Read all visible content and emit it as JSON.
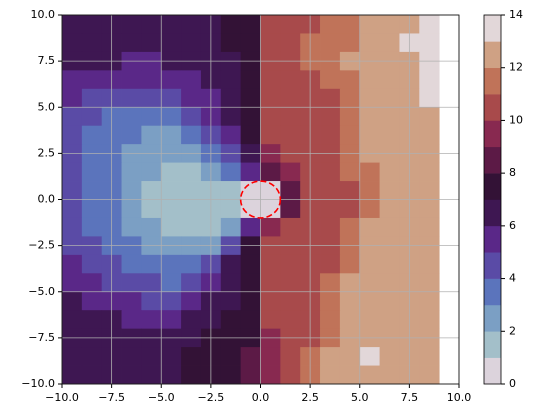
{
  "chart_data": {
    "type": "contourf",
    "x": [
      -9.5,
      -8.5,
      -7.5,
      -6.5,
      -5.5,
      -4.5,
      -3.5,
      -2.5,
      -1.5,
      -0.5,
      0.5,
      1.5,
      2.5,
      3.5,
      4.5,
      5.5,
      6.5,
      7.5,
      8.5,
      9.5
    ],
    "y": [
      9.5,
      8.5,
      7.5,
      6.5,
      5.5,
      4.5,
      3.5,
      2.5,
      1.5,
      0.5,
      -0.5,
      -1.5,
      -2.5,
      -3.5,
      -4.5,
      -5.5,
      -6.5,
      -7.5,
      -8.5,
      -9.5
    ],
    "z": [
      [
        6.5,
        6.5,
        6.5,
        6.5,
        6.5,
        6.5,
        6.5,
        6.5,
        7.5,
        7.5,
        10.5,
        10.5,
        10.5,
        11.5,
        11.5,
        12.5,
        12.5,
        12.5,
        13.5,
        null
      ],
      [
        6.5,
        6.5,
        6.5,
        6.5,
        6.5,
        6.5,
        6.5,
        6.5,
        7.5,
        7.5,
        10.5,
        10.5,
        11.5,
        11.5,
        11.5,
        12.5,
        12.5,
        13.5,
        13.5,
        null
      ],
      [
        6.5,
        6.5,
        6.5,
        5.5,
        5.5,
        6.5,
        6.5,
        6.5,
        6.5,
        7.5,
        10.5,
        10.5,
        11.5,
        11.5,
        12.5,
        12.5,
        12.5,
        12.5,
        13.5,
        null
      ],
      [
        5.5,
        5.5,
        5.5,
        5.5,
        5.5,
        5.5,
        5.5,
        6.5,
        6.5,
        7.5,
        10.5,
        10.5,
        10.5,
        11.5,
        11.5,
        12.5,
        12.5,
        12.5,
        13.5,
        null
      ],
      [
        5.5,
        4.5,
        4.5,
        4.5,
        4.5,
        4.5,
        5.5,
        5.5,
        6.5,
        7.5,
        10.5,
        10.5,
        10.5,
        10.5,
        11.5,
        12.5,
        12.5,
        12.5,
        13.5,
        null
      ],
      [
        4.5,
        4.5,
        3.5,
        3.5,
        3.5,
        3.5,
        4.5,
        5.5,
        6.5,
        7.5,
        10.5,
        10.5,
        10.5,
        10.5,
        11.5,
        12.5,
        12.5,
        12.5,
        12.5,
        null
      ],
      [
        4.5,
        3.5,
        3.5,
        3.5,
        2.5,
        2.5,
        3.5,
        4.5,
        5.5,
        7.5,
        10.5,
        10.5,
        10.5,
        10.5,
        11.5,
        12.5,
        12.5,
        12.5,
        12.5,
        null
      ],
      [
        4.5,
        3.5,
        3.5,
        2.5,
        2.5,
        2.5,
        2.5,
        3.5,
        4.5,
        6.5,
        9.5,
        10.5,
        10.5,
        10.5,
        11.5,
        12.5,
        12.5,
        12.5,
        12.5,
        null
      ],
      [
        4.5,
        3.5,
        3.5,
        2.5,
        2.5,
        1.5,
        1.5,
        2.5,
        3.5,
        5.5,
        8.5,
        9.5,
        10.5,
        10.5,
        11.5,
        11.5,
        12.5,
        12.5,
        12.5,
        null
      ],
      [
        4.5,
        3.5,
        3.5,
        2.5,
        1.5,
        1.5,
        1.5,
        1.5,
        1.5,
        0.5,
        0.5,
        8.5,
        10.5,
        10.5,
        10.5,
        11.5,
        12.5,
        12.5,
        12.5,
        null
      ],
      [
        4.5,
        3.5,
        3.5,
        2.5,
        1.5,
        1.5,
        1.5,
        1.5,
        1.5,
        0.5,
        0.5,
        8.5,
        10.5,
        10.5,
        10.5,
        11.5,
        12.5,
        12.5,
        12.5,
        null
      ],
      [
        4.5,
        3.5,
        3.5,
        2.5,
        2.5,
        1.5,
        1.5,
        1.5,
        2.5,
        5.5,
        9.5,
        10.5,
        10.5,
        10.5,
        11.5,
        12.5,
        12.5,
        12.5,
        12.5,
        null
      ],
      [
        4.5,
        4.5,
        3.5,
        3.5,
        2.5,
        2.5,
        2.5,
        2.5,
        4.5,
        7.5,
        10.5,
        10.5,
        10.5,
        10.5,
        11.5,
        12.5,
        12.5,
        12.5,
        12.5,
        null
      ],
      [
        5.5,
        4.5,
        4.5,
        3.5,
        3.5,
        3.5,
        3.5,
        4.5,
        6.5,
        7.5,
        10.5,
        10.5,
        10.5,
        10.5,
        11.5,
        12.5,
        12.5,
        12.5,
        12.5,
        null
      ],
      [
        5.5,
        5.5,
        4.5,
        4.5,
        4.5,
        3.5,
        4.5,
        5.5,
        6.5,
        7.5,
        10.5,
        10.5,
        10.5,
        11.5,
        12.5,
        12.5,
        12.5,
        12.5,
        12.5,
        null
      ],
      [
        6.5,
        5.5,
        5.5,
        5.5,
        4.5,
        4.5,
        5.5,
        6.5,
        6.5,
        7.5,
        10.5,
        10.5,
        10.5,
        11.5,
        12.5,
        12.5,
        12.5,
        12.5,
        12.5,
        null
      ],
      [
        6.5,
        6.5,
        6.5,
        5.5,
        5.5,
        5.5,
        6.5,
        6.5,
        7.5,
        7.5,
        10.5,
        10.5,
        10.5,
        11.5,
        12.5,
        12.5,
        12.5,
        12.5,
        12.5,
        null
      ],
      [
        6.5,
        6.5,
        6.5,
        6.5,
        6.5,
        6.5,
        6.5,
        7.5,
        7.5,
        7.5,
        9.5,
        10.5,
        10.5,
        11.5,
        12.5,
        12.5,
        12.5,
        12.5,
        12.5,
        null
      ],
      [
        6.5,
        6.5,
        6.5,
        6.5,
        6.5,
        6.5,
        7.5,
        7.5,
        7.5,
        8.5,
        9.5,
        10.5,
        11.5,
        12.5,
        12.5,
        13.5,
        12.5,
        12.5,
        12.5,
        null
      ],
      [
        6.5,
        6.5,
        6.5,
        6.5,
        6.5,
        6.5,
        7.5,
        7.5,
        7.5,
        8.5,
        9.5,
        10.5,
        11.5,
        12.5,
        12.5,
        12.5,
        12.5,
        12.5,
        12.5,
        null
      ]
    ],
    "levels": [
      0,
      1,
      2,
      3,
      4,
      5,
      6,
      7,
      8,
      9,
      10,
      11,
      12,
      13,
      14
    ],
    "colors": [
      "#dcd3dc",
      "#a3bfc9",
      "#7b9fc4",
      "#5b74bc",
      "#5a4ba6",
      "#5a2888",
      "#3e1752",
      "#331236",
      "#5c1a46",
      "#882950",
      "#a84a4b",
      "#c07359",
      "#cfa184",
      "#e2d7d9"
    ],
    "xlim": [
      -10,
      10
    ],
    "ylim": [
      -10,
      10
    ],
    "xticks": [
      {
        "value": -10,
        "label": "−10.0"
      },
      {
        "value": -7.5,
        "label": "−7.5"
      },
      {
        "value": -5,
        "label": "−5.0"
      },
      {
        "value": -2.5,
        "label": "−2.5"
      },
      {
        "value": 0,
        "label": "0.0"
      },
      {
        "value": 2.5,
        "label": "2.5"
      },
      {
        "value": 5,
        "label": "5.0"
      },
      {
        "value": 7.5,
        "label": "7.5"
      },
      {
        "value": 10,
        "label": "10.0"
      }
    ],
    "yticks": [
      {
        "value": -10,
        "label": "−10.0"
      },
      {
        "value": -7.5,
        "label": "−7.5"
      },
      {
        "value": -5,
        "label": "−5.0"
      },
      {
        "value": -2.5,
        "label": "−2.5"
      },
      {
        "value": 0,
        "label": "0.0"
      },
      {
        "value": 2.5,
        "label": "2.5"
      },
      {
        "value": 5,
        "label": "5.0"
      },
      {
        "value": 7.5,
        "label": "7.5"
      },
      {
        "value": 10,
        "label": "10.0"
      }
    ],
    "grid": true,
    "colorbar_ticks": [
      0,
      2,
      4,
      6,
      8,
      10,
      12,
      14
    ],
    "circle": {
      "center": [
        0,
        0
      ],
      "radius": 1,
      "color": "red"
    }
  }
}
